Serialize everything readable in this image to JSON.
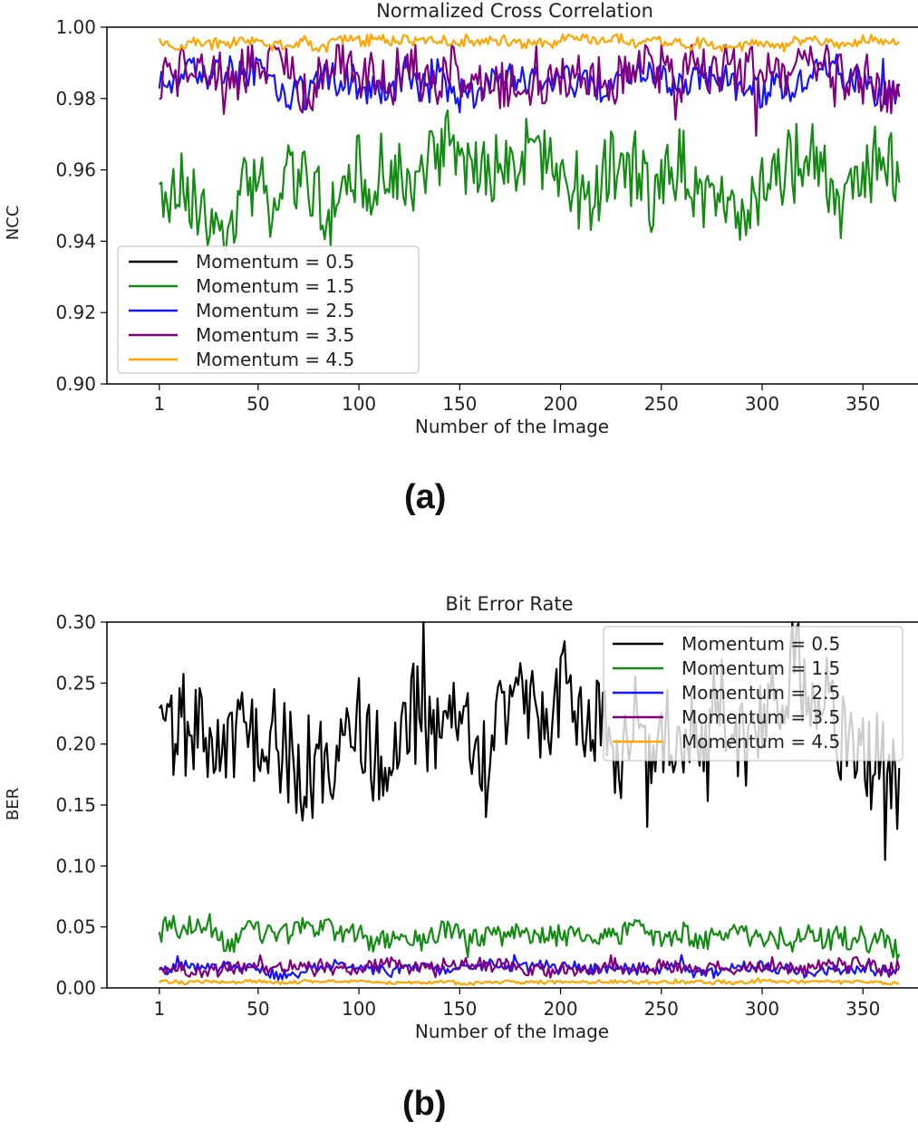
{
  "figure": {
    "caption_a": "(a)",
    "caption_b": "(b)"
  },
  "colors": {
    "c05": "#000000",
    "c15": "#148c14",
    "c25": "#1414ff",
    "c35": "#800080",
    "c45": "#ffa500"
  },
  "chart_data": [
    {
      "type": "line",
      "title": "Normalized Cross Correlation",
      "xlabel": "Number of the Image",
      "ylabel": "NCC",
      "xlim": [
        -25,
        380
      ],
      "ylim": [
        0.9,
        1.0
      ],
      "xticks": [
        1,
        50,
        100,
        150,
        200,
        250,
        300,
        350
      ],
      "xtick_labels": [
        "1",
        "50",
        "100",
        "150",
        "200",
        "250",
        "300",
        "350"
      ],
      "yticks": [
        0.9,
        0.92,
        0.94,
        0.96,
        0.98,
        1.0
      ],
      "ytick_labels": [
        "0.90",
        "0.92",
        "0.94",
        "0.96",
        "0.98",
        "1.00"
      ],
      "legend_position": "lower-left",
      "n_points": 368,
      "series": [
        {
          "name": "Momentum = 0.5",
          "color_key": "c05",
          "mean": null
        },
        {
          "name": "Momentum = 1.5",
          "color_key": "c15",
          "mean": 0.958,
          "amp": 0.009,
          "min": 0.932,
          "max": 0.982,
          "phase": 1
        },
        {
          "name": "Momentum = 2.5",
          "color_key": "c25",
          "mean": 0.985,
          "amp": 0.004,
          "min": 0.97,
          "max": 0.994,
          "phase": 2
        },
        {
          "name": "Momentum = 3.5",
          "color_key": "c35",
          "mean": 0.985,
          "amp": 0.006,
          "min": 0.966,
          "max": 0.995,
          "phase": 3
        },
        {
          "name": "Momentum = 4.5",
          "color_key": "c45",
          "mean": 0.9955,
          "amp": 0.0013,
          "min": 0.992,
          "max": 0.998,
          "phase": 4
        }
      ]
    },
    {
      "type": "line",
      "title": "Bit Error Rate",
      "xlabel": "Number of the Image",
      "ylabel": "BER",
      "xlim": [
        -25,
        380
      ],
      "ylim": [
        0.0,
        0.3
      ],
      "xticks": [
        1,
        50,
        100,
        150,
        200,
        250,
        300,
        350
      ],
      "xtick_labels": [
        "1",
        "50",
        "100",
        "150",
        "200",
        "250",
        "300",
        "350"
      ],
      "yticks": [
        0.0,
        0.05,
        0.1,
        0.15,
        0.2,
        0.25,
        0.3
      ],
      "ytick_labels": [
        "0.00",
        "0.05",
        "0.10",
        "0.15",
        "0.20",
        "0.25",
        "0.30"
      ],
      "legend_position": "upper-right",
      "n_points": 368,
      "series": [
        {
          "name": "Momentum = 0.5",
          "color_key": "c05",
          "mean": 0.205,
          "amp": 0.035,
          "min": 0.105,
          "max": 0.3,
          "phase": 5
        },
        {
          "name": "Momentum = 1.5",
          "color_key": "c15",
          "mean": 0.043,
          "amp": 0.008,
          "min": 0.02,
          "max": 0.068,
          "phase": 6
        },
        {
          "name": "Momentum = 2.5",
          "color_key": "c25",
          "mean": 0.016,
          "amp": 0.004,
          "min": 0.005,
          "max": 0.027,
          "phase": 7
        },
        {
          "name": "Momentum = 3.5",
          "color_key": "c35",
          "mean": 0.016,
          "amp": 0.005,
          "min": 0.004,
          "max": 0.03,
          "phase": 8
        },
        {
          "name": "Momentum = 4.5",
          "color_key": "c45",
          "mean": 0.005,
          "amp": 0.0012,
          "min": 0.002,
          "max": 0.008,
          "phase": 9
        }
      ]
    }
  ]
}
